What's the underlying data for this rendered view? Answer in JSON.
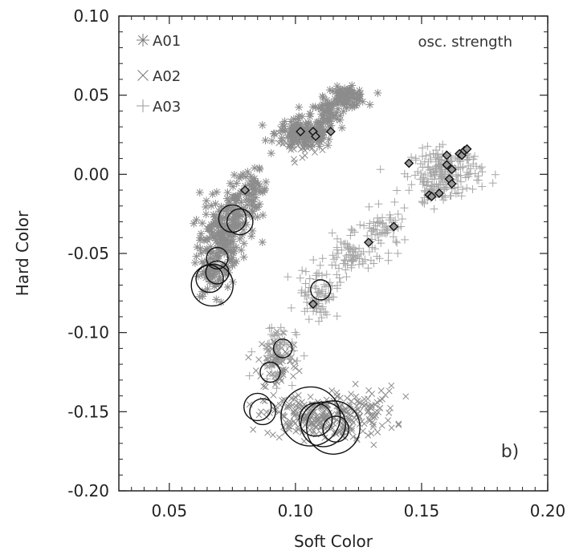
{
  "chart_data": {
    "type": "scatter",
    "xlabel": "Soft Color",
    "ylabel": "Hard Color",
    "xlim": [
      0.03,
      0.2
    ],
    "ylim": [
      -0.2,
      0.1
    ],
    "xticks": [
      0.05,
      0.1,
      0.15,
      0.2
    ],
    "yticks": [
      -0.2,
      -0.15,
      -0.1,
      -0.05,
      0.0,
      0.05,
      0.1
    ],
    "xtick_labels": [
      "0.05",
      "0.10",
      "0.15",
      "0.20"
    ],
    "ytick_labels": [
      "-0.20",
      "-0.15",
      "-0.10",
      "-0.05",
      "0.00",
      "0.05",
      "0.10"
    ],
    "legend_position": "top-left",
    "annotation_topright": "osc. strength",
    "panel_label": "b)",
    "series": [
      {
        "name": "A01",
        "marker": "asterisk",
        "color": "#8c8c8c",
        "clusters": [
          {
            "center": [
              0.07,
              -0.045
            ],
            "spread": [
              0.0045,
              0.013
            ],
            "n": 170
          },
          {
            "center": [
              0.076,
              -0.023
            ],
            "spread": [
              0.004,
              0.01
            ],
            "n": 90
          },
          {
            "center": [
              0.083,
              -0.01
            ],
            "spread": [
              0.003,
              0.006
            ],
            "n": 50
          },
          {
            "center": [
              0.066,
              -0.068
            ],
            "spread": [
              0.002,
              0.005
            ],
            "n": 25
          },
          {
            "center": [
              0.104,
              0.026
            ],
            "spread": [
              0.006,
              0.005
            ],
            "n": 140
          },
          {
            "center": [
              0.12,
              0.049
            ],
            "spread": [
              0.004,
              0.003
            ],
            "n": 90
          },
          {
            "center": [
              0.112,
              0.038
            ],
            "spread": [
              0.003,
              0.004
            ],
            "n": 40
          }
        ]
      },
      {
        "name": "A02",
        "marker": "x",
        "color": "#8c8c8c",
        "clusters": [
          {
            "center": [
              0.093,
              -0.118
            ],
            "spread": [
              0.004,
              0.01
            ],
            "n": 90
          },
          {
            "center": [
              0.108,
              -0.153
            ],
            "spread": [
              0.01,
              0.007
            ],
            "n": 220
          },
          {
            "center": [
              0.128,
              -0.15
            ],
            "spread": [
              0.006,
              0.008
            ],
            "n": 70
          },
          {
            "center": [
              0.102,
              0.02
            ],
            "spread": [
              0.005,
              0.004
            ],
            "n": 50
          }
        ]
      },
      {
        "name": "A03",
        "marker": "plus",
        "color": "#a6a6a6",
        "clusters": [
          {
            "center": [
              0.16,
              0.002
            ],
            "spread": [
              0.007,
              0.007
            ],
            "n": 170
          },
          {
            "center": [
              0.155,
              -0.01
            ],
            "spread": [
              0.004,
              0.005
            ],
            "n": 40
          },
          {
            "center": [
              0.135,
              -0.035
            ],
            "spread": [
              0.005,
              0.006
            ],
            "n": 60
          },
          {
            "center": [
              0.122,
              -0.052
            ],
            "spread": [
              0.005,
              0.006
            ],
            "n": 70
          },
          {
            "center": [
              0.109,
              -0.075
            ],
            "spread": [
              0.004,
              0.008
            ],
            "n": 80
          },
          {
            "center": [
              0.092,
              -0.112
            ],
            "spread": [
              0.004,
              0.01
            ],
            "n": 50
          }
        ]
      }
    ],
    "diamonds": [
      [
        0.102,
        0.027
      ],
      [
        0.107,
        0.027
      ],
      [
        0.108,
        0.024
      ],
      [
        0.114,
        0.027
      ],
      [
        0.08,
        -0.01
      ],
      [
        0.145,
        0.007
      ],
      [
        0.153,
        -0.013
      ],
      [
        0.154,
        -0.014
      ],
      [
        0.157,
        -0.012
      ],
      [
        0.16,
        0.012
      ],
      [
        0.16,
        0.006
      ],
      [
        0.162,
        0.003
      ],
      [
        0.161,
        -0.003
      ],
      [
        0.162,
        -0.006
      ],
      [
        0.165,
        0.013
      ],
      [
        0.166,
        0.012
      ],
      [
        0.167,
        0.015
      ],
      [
        0.168,
        0.016
      ],
      [
        0.139,
        -0.033
      ],
      [
        0.129,
        -0.043
      ],
      [
        0.107,
        -0.082
      ]
    ],
    "circles": [
      {
        "x": 0.075,
        "y": -0.028,
        "size": 0.5
      },
      {
        "x": 0.078,
        "y": -0.03,
        "size": 0.45
      },
      {
        "x": 0.069,
        "y": -0.053,
        "size": 0.3
      },
      {
        "x": 0.069,
        "y": -0.062,
        "size": 0.35
      },
      {
        "x": 0.066,
        "y": -0.066,
        "size": 0.5
      },
      {
        "x": 0.067,
        "y": -0.07,
        "size": 1.0
      },
      {
        "x": 0.11,
        "y": -0.073,
        "size": 0.25
      },
      {
        "x": 0.095,
        "y": -0.11,
        "size": 0.2
      },
      {
        "x": 0.09,
        "y": -0.125,
        "size": 0.25
      },
      {
        "x": 0.085,
        "y": -0.147,
        "size": 0.5
      },
      {
        "x": 0.087,
        "y": -0.15,
        "size": 0.45
      },
      {
        "x": 0.106,
        "y": -0.153,
        "size": 1.6
      },
      {
        "x": 0.108,
        "y": -0.155,
        "size": 0.7
      },
      {
        "x": 0.111,
        "y": -0.158,
        "size": 1.1
      },
      {
        "x": 0.115,
        "y": -0.16,
        "size": 1.4
      },
      {
        "x": 0.116,
        "y": -0.161,
        "size": 0.45
      }
    ]
  }
}
